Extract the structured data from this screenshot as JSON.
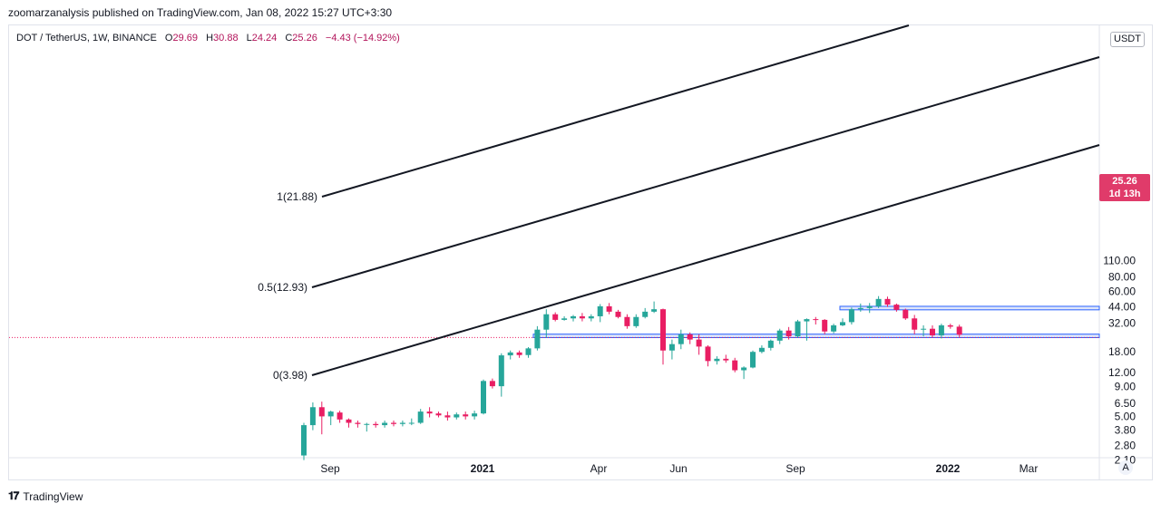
{
  "header": {
    "publish_line": "zoomarzanalysis published on TradingView.com, Jan 08, 2022 15:27 UTC+3:30"
  },
  "legend": {
    "symbol": "DOT / TetherUS, 1W, BINANCE",
    "open_label": "O",
    "open": "29.69",
    "high_label": "H",
    "high": "30.88",
    "low_label": "L",
    "low": "24.24",
    "close_label": "C",
    "close": "25.26",
    "change": "−4.43 (−14.92%)"
  },
  "price_axis": {
    "unit": "USDT",
    "current_price": "25.26",
    "countdown": "1d 13h",
    "reset_button": "A"
  },
  "footer": {
    "brand": "TradingView"
  },
  "colors": {
    "up": "#26a69a",
    "down": "#e91e63",
    "channel": "#131722",
    "zone_fill": "#c7d2f5",
    "zone_line": "#2962ff",
    "badge": "#e03b6a"
  },
  "chart_data": {
    "type": "candlestick",
    "scale": "log",
    "y_ticks": [
      "110.00",
      "80.00",
      "60.00",
      "44.00",
      "32.00",
      "18.00",
      "12.00",
      "9.00",
      "6.50",
      "5.00",
      "3.80",
      "2.80",
      "2.10"
    ],
    "x_ticks": [
      "Sep",
      "2021",
      "Apr",
      "Jun",
      "Sep",
      "2022",
      "Mar"
    ],
    "fib_levels": [
      {
        "label": "1(21.88)",
        "value": 21.88
      },
      {
        "label": "0.5(12.93)",
        "value": 12.93
      },
      {
        "label": "0(3.98)",
        "value": 3.98
      }
    ],
    "zones": [
      {
        "low": 41.5,
        "high": 44.5
      },
      {
        "low": 23.9,
        "high": 25.6
      }
    ],
    "candles": [
      {
        "o": 2.3,
        "h": 4.4,
        "l": 2.1,
        "c": 4.2
      },
      {
        "o": 4.2,
        "h": 6.6,
        "l": 3.8,
        "c": 6.0
      },
      {
        "o": 6.0,
        "h": 6.7,
        "l": 3.5,
        "c": 5.0
      },
      {
        "o": 5.0,
        "h": 5.6,
        "l": 4.2,
        "c": 5.5
      },
      {
        "o": 5.4,
        "h": 5.6,
        "l": 4.4,
        "c": 4.7
      },
      {
        "o": 4.7,
        "h": 4.8,
        "l": 4.0,
        "c": 4.4
      },
      {
        "o": 4.4,
        "h": 4.6,
        "l": 4.0,
        "c": 4.3
      },
      {
        "o": 4.3,
        "h": 4.4,
        "l": 3.7,
        "c": 4.3
      },
      {
        "o": 4.3,
        "h": 4.5,
        "l": 4.0,
        "c": 4.2
      },
      {
        "o": 4.2,
        "h": 4.6,
        "l": 4.0,
        "c": 4.4
      },
      {
        "o": 4.4,
        "h": 4.6,
        "l": 4.1,
        "c": 4.3
      },
      {
        "o": 4.3,
        "h": 4.6,
        "l": 4.1,
        "c": 4.4
      },
      {
        "o": 4.4,
        "h": 4.8,
        "l": 4.2,
        "c": 4.4
      },
      {
        "o": 4.4,
        "h": 5.8,
        "l": 4.3,
        "c": 5.5
      },
      {
        "o": 5.5,
        "h": 6.0,
        "l": 4.9,
        "c": 5.3
      },
      {
        "o": 5.3,
        "h": 5.5,
        "l": 4.9,
        "c": 5.1
      },
      {
        "o": 5.1,
        "h": 5.5,
        "l": 4.6,
        "c": 4.9
      },
      {
        "o": 4.9,
        "h": 5.4,
        "l": 4.7,
        "c": 5.2
      },
      {
        "o": 5.2,
        "h": 5.5,
        "l": 4.7,
        "c": 5.0
      },
      {
        "o": 5.0,
        "h": 5.6,
        "l": 4.7,
        "c": 5.3
      },
      {
        "o": 5.3,
        "h": 10.4,
        "l": 5.2,
        "c": 10.1
      },
      {
        "o": 10.1,
        "h": 10.6,
        "l": 8.7,
        "c": 9.1
      },
      {
        "o": 9.1,
        "h": 17.5,
        "l": 7.4,
        "c": 16.8
      },
      {
        "o": 16.8,
        "h": 18.5,
        "l": 15.5,
        "c": 17.8
      },
      {
        "o": 17.8,
        "h": 18.5,
        "l": 16.0,
        "c": 16.9
      },
      {
        "o": 16.9,
        "h": 19.8,
        "l": 16.0,
        "c": 19.3
      },
      {
        "o": 19.3,
        "h": 30.0,
        "l": 18.5,
        "c": 28.0
      },
      {
        "o": 28.0,
        "h": 42.0,
        "l": 24.0,
        "c": 38.0
      },
      {
        "o": 38.0,
        "h": 39.5,
        "l": 33.0,
        "c": 34.0
      },
      {
        "o": 34.0,
        "h": 36.5,
        "l": 33.5,
        "c": 35.0
      },
      {
        "o": 35.0,
        "h": 37.5,
        "l": 33.0,
        "c": 36.5
      },
      {
        "o": 36.5,
        "h": 39.0,
        "l": 33.0,
        "c": 35.0
      },
      {
        "o": 35.0,
        "h": 38.0,
        "l": 33.0,
        "c": 36.5
      },
      {
        "o": 36.5,
        "h": 46.5,
        "l": 32.5,
        "c": 44.5
      },
      {
        "o": 44.5,
        "h": 47.5,
        "l": 38.0,
        "c": 40.0
      },
      {
        "o": 40.0,
        "h": 41.5,
        "l": 35.0,
        "c": 36.0
      },
      {
        "o": 36.0,
        "h": 38.0,
        "l": 28.5,
        "c": 30.0
      },
      {
        "o": 30.0,
        "h": 38.0,
        "l": 29.0,
        "c": 36.0
      },
      {
        "o": 36.0,
        "h": 43.0,
        "l": 35.0,
        "c": 40.0
      },
      {
        "o": 40.0,
        "h": 49.0,
        "l": 39.0,
        "c": 42.0
      },
      {
        "o": 42.0,
        "h": 42.5,
        "l": 14.0,
        "c": 18.5
      },
      {
        "o": 18.5,
        "h": 23.0,
        "l": 15.5,
        "c": 21.0
      },
      {
        "o": 21.0,
        "h": 28.0,
        "l": 19.0,
        "c": 25.5
      },
      {
        "o": 25.5,
        "h": 26.5,
        "l": 21.0,
        "c": 23.0
      },
      {
        "o": 23.0,
        "h": 25.5,
        "l": 17.0,
        "c": 20.0
      },
      {
        "o": 20.0,
        "h": 20.5,
        "l": 13.5,
        "c": 15.0
      },
      {
        "o": 15.0,
        "h": 16.5,
        "l": 14.0,
        "c": 15.7
      },
      {
        "o": 15.7,
        "h": 17.0,
        "l": 14.5,
        "c": 15.2
      },
      {
        "o": 15.2,
        "h": 16.0,
        "l": 12.0,
        "c": 12.5
      },
      {
        "o": 12.5,
        "h": 13.5,
        "l": 10.5,
        "c": 13.2
      },
      {
        "o": 13.2,
        "h": 18.5,
        "l": 13.0,
        "c": 18.0
      },
      {
        "o": 18.0,
        "h": 20.5,
        "l": 17.5,
        "c": 19.5
      },
      {
        "o": 19.5,
        "h": 23.0,
        "l": 18.5,
        "c": 22.5
      },
      {
        "o": 22.5,
        "h": 28.5,
        "l": 21.0,
        "c": 27.5
      },
      {
        "o": 27.5,
        "h": 29.5,
        "l": 23.0,
        "c": 24.5
      },
      {
        "o": 24.5,
        "h": 34.0,
        "l": 24.0,
        "c": 33.0
      },
      {
        "o": 33.0,
        "h": 35.0,
        "l": 22.5,
        "c": 34.5
      },
      {
        "o": 34.5,
        "h": 36.0,
        "l": 31.0,
        "c": 34.0
      },
      {
        "o": 34.0,
        "h": 34.5,
        "l": 25.5,
        "c": 27.0
      },
      {
        "o": 27.0,
        "h": 31.5,
        "l": 26.0,
        "c": 30.5
      },
      {
        "o": 30.5,
        "h": 35.0,
        "l": 30.0,
        "c": 32.5
      },
      {
        "o": 32.5,
        "h": 43.5,
        "l": 31.0,
        "c": 42.0
      },
      {
        "o": 42.0,
        "h": 47.0,
        "l": 40.0,
        "c": 43.0
      },
      {
        "o": 43.0,
        "h": 47.5,
        "l": 39.0,
        "c": 44.5
      },
      {
        "o": 44.5,
        "h": 54.5,
        "l": 43.0,
        "c": 51.5
      },
      {
        "o": 51.5,
        "h": 54.0,
        "l": 44.0,
        "c": 46.0
      },
      {
        "o": 46.0,
        "h": 47.0,
        "l": 40.0,
        "c": 41.5
      },
      {
        "o": 41.5,
        "h": 42.5,
        "l": 34.0,
        "c": 35.0
      },
      {
        "o": 35.0,
        "h": 37.5,
        "l": 25.5,
        "c": 28.0
      },
      {
        "o": 28.0,
        "h": 30.5,
        "l": 24.5,
        "c": 28.5
      },
      {
        "o": 28.5,
        "h": 30.5,
        "l": 24.0,
        "c": 25.0
      },
      {
        "o": 25.0,
        "h": 31.5,
        "l": 23.5,
        "c": 30.5
      },
      {
        "o": 30.5,
        "h": 31.5,
        "l": 28.5,
        "c": 29.7
      },
      {
        "o": 29.7,
        "h": 30.9,
        "l": 24.2,
        "c": 25.3
      }
    ]
  }
}
